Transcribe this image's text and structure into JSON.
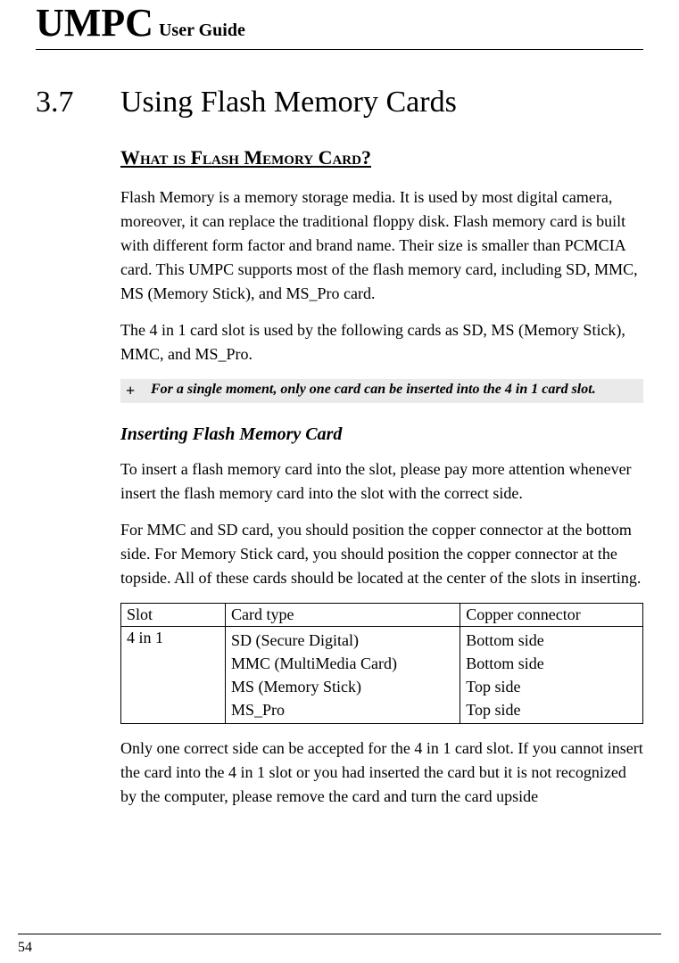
{
  "header": {
    "brand": "UMPC",
    "guide": "User Guide"
  },
  "section": {
    "number": "3.7",
    "title": "Using Flash Memory Cards"
  },
  "h2": "What is Flash Memory Card?",
  "p1": "Flash Memory is a memory storage media. It is used by most digital camera, moreover, it can replace the traditional floppy disk. Flash memory card is built with different form factor and brand name. Their size is smaller than PCMCIA card. This UMPC supports most of the flash memory card, including SD, MMC, MS (Memory Stick), and MS_Pro card.",
  "p2": "The 4 in 1 card slot is used by the following cards as SD, MS (Memory Stick), MMC, and MS_Pro.",
  "note": {
    "symbol": "+",
    "text": "For a single moment, only one card can be inserted into the 4 in 1 card slot."
  },
  "h3": "Inserting Flash Memory Card",
  "p3": "To insert a flash memory card into the slot, please pay more attention whenever insert the flash memory card into the slot with the correct side.",
  "p4": "For MMC and SD card, you should position the copper connector at the bottom side. For Memory Stick card, you should position the copper connector at the topside. All of these cards should be located at the center of the slots in inserting.",
  "table": {
    "columns": [
      "Slot",
      "Card type",
      "Copper connector"
    ],
    "col_widths": [
      "20%",
      "45%",
      "35%"
    ],
    "rows": [
      {
        "slot": "4 in 1",
        "card_types": [
          "SD (Secure Digital)",
          "MMC (MultiMedia Card)",
          "MS (Memory Stick)",
          "MS_Pro"
        ],
        "connectors": [
          "Bottom side",
          "Bottom side",
          "Top side",
          "Top side"
        ]
      }
    ]
  },
  "p5": "Only one correct side can be accepted for the 4 in 1 card slot. If you cannot insert the card into the 4 in 1 slot or you had inserted the card but it is not recognized by the computer, please remove the card and turn the card upside",
  "page_number": "54",
  "colors": {
    "text": "#000000",
    "background": "#ffffff",
    "note_bg": "#eaeaea",
    "rule": "#000000"
  },
  "typography": {
    "body_fontsize": 18,
    "brand_fontsize": 44,
    "guide_fontsize": 20,
    "section_fontsize": 34,
    "h2_fontsize": 22,
    "h3_fontsize": 20,
    "note_fontsize": 16
  }
}
